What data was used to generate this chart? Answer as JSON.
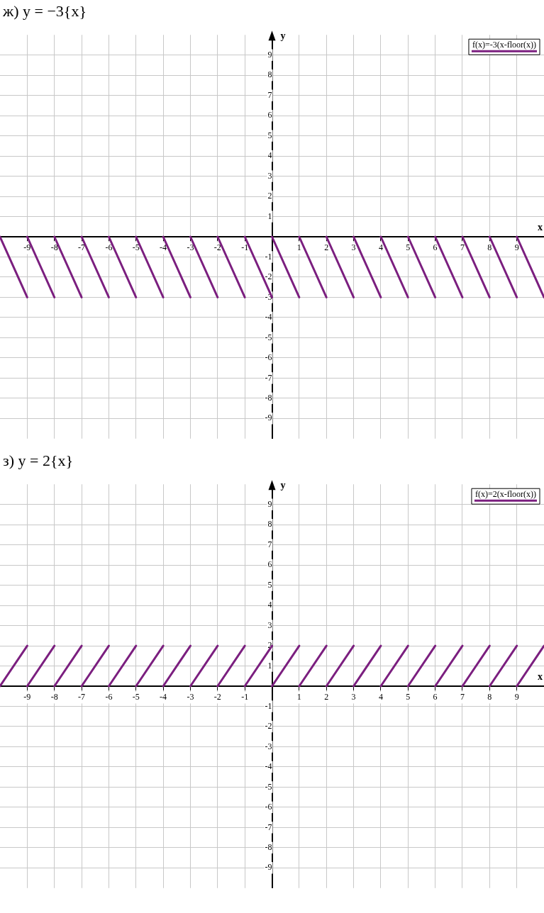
{
  "chart_data": [
    {
      "type": "line",
      "title": "ж) y = −3{x}",
      "xlabel": "x",
      "ylabel": "y",
      "xlim": [
        -10,
        10
      ],
      "ylim": [
        -10,
        10
      ],
      "xticks": [
        -9,
        -8,
        -7,
        -6,
        -5,
        -4,
        -3,
        -2,
        -1,
        1,
        2,
        3,
        4,
        5,
        6,
        7,
        8,
        9
      ],
      "yticks": [
        -9,
        -8,
        -7,
        -6,
        -5,
        -4,
        -3,
        -2,
        -1,
        1,
        2,
        3,
        4,
        5,
        6,
        7,
        8,
        9
      ],
      "grid": true,
      "legend": "top right",
      "marker": "none",
      "line_style": "solid",
      "series": [
        {
          "name": "f(x)=-3(x-floor(x))",
          "color": "#7b1f7f",
          "x": [
            -10,
            -9,
            null,
            -9,
            -8,
            null,
            -8,
            -7,
            null,
            -7,
            -6,
            null,
            -6,
            -5,
            null,
            -5,
            -4,
            null,
            -4,
            -3,
            null,
            -3,
            -2,
            null,
            -2,
            -1,
            null,
            -1,
            0,
            null,
            0,
            1,
            null,
            1,
            2,
            null,
            2,
            3,
            null,
            3,
            4,
            null,
            4,
            5,
            null,
            5,
            6,
            null,
            6,
            7,
            null,
            7,
            8,
            null,
            8,
            9,
            null,
            9,
            10
          ],
          "values": [
            0,
            -3,
            null,
            0,
            -3,
            null,
            0,
            -3,
            null,
            0,
            -3,
            null,
            0,
            -3,
            null,
            0,
            -3,
            null,
            0,
            -3,
            null,
            0,
            -3,
            null,
            0,
            -3,
            null,
            0,
            -3,
            null,
            0,
            -3,
            null,
            0,
            -3,
            null,
            0,
            -3,
            null,
            0,
            -3,
            null,
            0,
            -3,
            null,
            0,
            -3,
            null,
            0,
            -3,
            null,
            0,
            -3,
            null,
            0,
            -3,
            null,
            0,
            -3
          ]
        }
      ]
    },
    {
      "type": "line",
      "title": "з) y = 2{x}",
      "xlabel": "x",
      "ylabel": "y",
      "xlim": [
        -10,
        10
      ],
      "ylim": [
        -10,
        10
      ],
      "xticks": [
        -9,
        -8,
        -7,
        -6,
        -5,
        -4,
        -3,
        -2,
        -1,
        1,
        2,
        3,
        4,
        5,
        6,
        7,
        8,
        9
      ],
      "yticks": [
        -9,
        -8,
        -7,
        -6,
        -5,
        -4,
        -3,
        -2,
        -1,
        1,
        2,
        3,
        4,
        5,
        6,
        7,
        8,
        9
      ],
      "grid": true,
      "legend": "top right",
      "marker": "none",
      "line_style": "solid",
      "series": [
        {
          "name": "f(x)=2(x-floor(x))",
          "color": "#7b1f7f",
          "x": [
            -10,
            -9,
            null,
            -9,
            -8,
            null,
            -8,
            -7,
            null,
            -7,
            -6,
            null,
            -6,
            -5,
            null,
            -5,
            -4,
            null,
            -4,
            -3,
            null,
            -3,
            -2,
            null,
            -2,
            -1,
            null,
            -1,
            0,
            null,
            0,
            1,
            null,
            1,
            2,
            null,
            2,
            3,
            null,
            3,
            4,
            null,
            4,
            5,
            null,
            5,
            6,
            null,
            6,
            7,
            null,
            7,
            8,
            null,
            8,
            9,
            null,
            9,
            10
          ],
          "values": [
            0,
            2,
            null,
            0,
            2,
            null,
            0,
            2,
            null,
            0,
            2,
            null,
            0,
            2,
            null,
            0,
            2,
            null,
            0,
            2,
            null,
            0,
            2,
            null,
            0,
            2,
            null,
            0,
            2,
            null,
            0,
            2,
            null,
            0,
            2,
            null,
            0,
            2,
            null,
            0,
            2,
            null,
            0,
            2,
            null,
            0,
            2,
            null,
            0,
            2,
            null,
            0,
            2,
            null,
            0,
            2,
            null,
            0,
            2
          ]
        }
      ]
    }
  ]
}
